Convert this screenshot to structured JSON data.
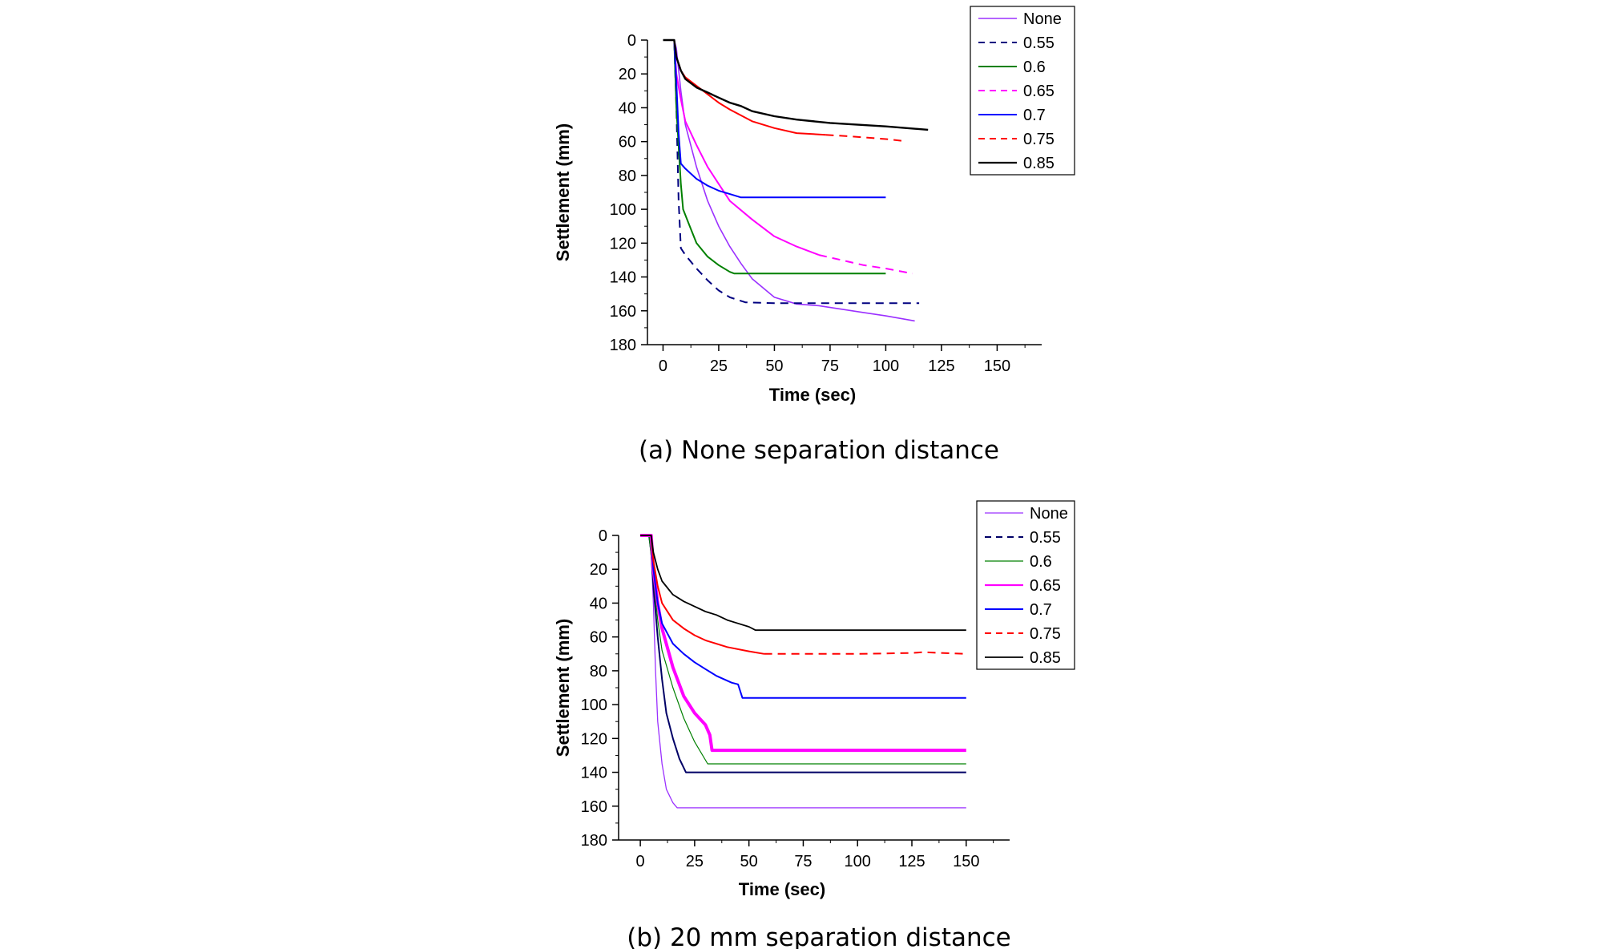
{
  "chart_data": [
    {
      "type": "line",
      "caption": "(a) None separation distance",
      "xlabel": "Time (sec)",
      "ylabel": "Settlement (mm)",
      "xlim": [
        -7,
        170
      ],
      "ylim": [
        0,
        180
      ],
      "y_inverted": true,
      "xticks": [
        "0",
        "25",
        "50",
        "75",
        "100",
        "125",
        "150"
      ],
      "yticks": [
        "0",
        "20",
        "40",
        "60",
        "80",
        "100",
        "120",
        "140",
        "160",
        "180"
      ],
      "legend": "top-right",
      "series": [
        {
          "name": "None",
          "color": "#9b30ff",
          "dash": "solid",
          "width": 1.6,
          "points": [
            [
              0,
              0
            ],
            [
              5,
              0
            ],
            [
              6,
              5
            ],
            [
              8,
              30
            ],
            [
              10,
              50
            ],
            [
              15,
              75
            ],
            [
              20,
              95
            ],
            [
              25,
              110
            ],
            [
              30,
              122
            ],
            [
              35,
              132
            ],
            [
              40,
              141
            ],
            [
              50,
              152
            ],
            [
              60,
              156
            ],
            [
              70,
              157
            ],
            [
              80,
              159
            ],
            [
              90,
              161
            ],
            [
              100,
              163
            ],
            [
              113,
              166
            ]
          ]
        },
        {
          "name": "0.55",
          "color": "#000080",
          "dash": "dashed",
          "width": 2,
          "points": [
            [
              0,
              0
            ],
            [
              5,
              0
            ],
            [
              6,
              40
            ],
            [
              7,
              95
            ],
            [
              8,
              123
            ],
            [
              10,
              127
            ],
            [
              15,
              135
            ],
            [
              20,
              142
            ],
            [
              25,
              148
            ],
            [
              30,
              152
            ],
            [
              37,
              155
            ],
            [
              50,
              155.5
            ],
            [
              75,
              155.5
            ],
            [
              100,
              155.5
            ],
            [
              115,
              155.5
            ]
          ]
        },
        {
          "name": "0.6",
          "color": "#008000",
          "dash": "solid",
          "width": 2,
          "points": [
            [
              0,
              0
            ],
            [
              5,
              0
            ],
            [
              6,
              40
            ],
            [
              8,
              85
            ],
            [
              9,
              100
            ],
            [
              12,
              110
            ],
            [
              15,
              120
            ],
            [
              20,
              128
            ],
            [
              25,
              133
            ],
            [
              30,
              137
            ],
            [
              32,
              138
            ],
            [
              50,
              138
            ],
            [
              75,
              138
            ],
            [
              100,
              138
            ]
          ]
        },
        {
          "name": "0.65",
          "color": "#ff00ff",
          "dash": "mixed",
          "width": 2,
          "dash_from_x": 70,
          "points": [
            [
              0,
              0
            ],
            [
              5,
              0
            ],
            [
              6,
              20
            ],
            [
              8,
              35
            ],
            [
              10,
              48
            ],
            [
              15,
              62
            ],
            [
              20,
              75
            ],
            [
              25,
              85
            ],
            [
              30,
              95
            ],
            [
              40,
              106
            ],
            [
              50,
              116
            ],
            [
              60,
              122
            ],
            [
              70,
              127
            ],
            [
              80,
              130
            ],
            [
              90,
              133
            ],
            [
              100,
              135
            ],
            [
              112,
              138
            ]
          ]
        },
        {
          "name": "0.7",
          "color": "#0000ff",
          "dash": "solid",
          "width": 2,
          "points": [
            [
              0,
              0
            ],
            [
              5,
              0
            ],
            [
              6,
              25
            ],
            [
              7,
              55
            ],
            [
              8,
              73
            ],
            [
              10,
              76
            ],
            [
              15,
              82
            ],
            [
              20,
              86
            ],
            [
              25,
              89
            ],
            [
              30,
              91
            ],
            [
              35,
              93
            ],
            [
              45,
              93
            ],
            [
              60,
              93
            ],
            [
              80,
              93
            ],
            [
              100,
              93
            ]
          ]
        },
        {
          "name": "0.75",
          "color": "#ff0000",
          "dash": "mixed",
          "width": 2,
          "dash_from_x": 73,
          "points": [
            [
              0,
              0
            ],
            [
              5,
              0
            ],
            [
              6,
              10
            ],
            [
              8,
              18
            ],
            [
              10,
              22
            ],
            [
              15,
              27
            ],
            [
              20,
              32
            ],
            [
              25,
              37
            ],
            [
              30,
              41
            ],
            [
              40,
              48
            ],
            [
              50,
              52
            ],
            [
              60,
              55
            ],
            [
              73,
              56
            ],
            [
              85,
              57
            ],
            [
              100,
              58.5
            ],
            [
              107,
              59.5
            ]
          ]
        },
        {
          "name": "0.85",
          "color": "#000000",
          "dash": "solid",
          "width": 2.4,
          "points": [
            [
              0,
              0
            ],
            [
              5,
              0
            ],
            [
              6,
              10
            ],
            [
              8,
              18
            ],
            [
              10,
              23
            ],
            [
              15,
              28
            ],
            [
              20,
              31
            ],
            [
              25,
              34
            ],
            [
              30,
              37
            ],
            [
              35,
              39
            ],
            [
              40,
              42
            ],
            [
              50,
              45
            ],
            [
              60,
              47
            ],
            [
              75,
              49
            ],
            [
              100,
              51
            ],
            [
              119,
              53
            ]
          ]
        }
      ]
    },
    {
      "type": "line",
      "caption": "(b) 20 mm separation distance",
      "xlabel": "Time (sec)",
      "ylabel": "Settlement (mm)",
      "xlim": [
        -10,
        170
      ],
      "ylim": [
        0,
        180
      ],
      "y_inverted": true,
      "xticks": [
        "0",
        "25",
        "50",
        "75",
        "100",
        "125",
        "150"
      ],
      "yticks": [
        "0",
        "20",
        "40",
        "60",
        "80",
        "100",
        "120",
        "140",
        "160",
        "180"
      ],
      "legend": "top-right",
      "series": [
        {
          "name": "None",
          "color": "#9b30ff",
          "dash": "solid",
          "width": 1.3,
          "points": [
            [
              0,
              0
            ],
            [
              4,
              0
            ],
            [
              5,
              10
            ],
            [
              6,
              40
            ],
            [
              7,
              80
            ],
            [
              8,
              110
            ],
            [
              10,
              135
            ],
            [
              12,
              150
            ],
            [
              15,
              158
            ],
            [
              17,
              161
            ],
            [
              20,
              161
            ],
            [
              50,
              161
            ],
            [
              100,
              161
            ],
            [
              150,
              161
            ]
          ]
        },
        {
          "name": "0.55",
          "color": "#000066",
          "dash": "mixed",
          "width": 2,
          "dash_from_x": 150,
          "points": [
            [
              0,
              0
            ],
            [
              4,
              0
            ],
            [
              5,
              10
            ],
            [
              6,
              30
            ],
            [
              8,
              60
            ],
            [
              10,
              85
            ],
            [
              12,
              105
            ],
            [
              15,
              120
            ],
            [
              18,
              132
            ],
            [
              21,
              140
            ],
            [
              30,
              140
            ],
            [
              50,
              140
            ],
            [
              100,
              140
            ],
            [
              150,
              140
            ]
          ]
        },
        {
          "name": "0.6",
          "color": "#008000",
          "dash": "solid",
          "width": 1.2,
          "points": [
            [
              0,
              0
            ],
            [
              4,
              0
            ],
            [
              6,
              25
            ],
            [
              8,
              50
            ],
            [
              10,
              68
            ],
            [
              15,
              90
            ],
            [
              20,
              108
            ],
            [
              25,
              122
            ],
            [
              31,
              135
            ],
            [
              50,
              135
            ],
            [
              100,
              135
            ],
            [
              150,
              135
            ]
          ]
        },
        {
          "name": "0.65",
          "color": "#ff00ff",
          "dash": "solid",
          "width": 4,
          "points": [
            [
              0,
              0
            ],
            [
              5,
              0
            ],
            [
              6,
              20
            ],
            [
              8,
              40
            ],
            [
              10,
              55
            ],
            [
              15,
              78
            ],
            [
              20,
              95
            ],
            [
              25,
              105
            ],
            [
              30,
              112
            ],
            [
              32,
              118
            ],
            [
              33,
              127
            ],
            [
              50,
              127
            ],
            [
              100,
              127
            ],
            [
              150,
              127
            ]
          ]
        },
        {
          "name": "0.7",
          "color": "#0000ff",
          "dash": "solid",
          "width": 2,
          "points": [
            [
              0,
              0
            ],
            [
              5,
              0
            ],
            [
              6,
              20
            ],
            [
              8,
              40
            ],
            [
              10,
              52
            ],
            [
              15,
              64
            ],
            [
              20,
              70
            ],
            [
              25,
              75
            ],
            [
              30,
              79
            ],
            [
              35,
              83
            ],
            [
              42,
              87
            ],
            [
              45,
              88
            ],
            [
              47,
              96
            ],
            [
              75,
              96
            ],
            [
              100,
              96
            ],
            [
              150,
              96
            ]
          ]
        },
        {
          "name": "0.75",
          "color": "#ff0000",
          "dash": "mixed",
          "width": 2,
          "dash_from_x": 57,
          "points": [
            [
              0,
              0
            ],
            [
              5,
              0
            ],
            [
              6,
              15
            ],
            [
              8,
              30
            ],
            [
              10,
              40
            ],
            [
              15,
              50
            ],
            [
              20,
              55
            ],
            [
              25,
              59
            ],
            [
              30,
              62
            ],
            [
              40,
              66
            ],
            [
              50,
              68.5
            ],
            [
              57,
              70
            ],
            [
              75,
              70
            ],
            [
              100,
              70
            ],
            [
              125,
              69.5
            ],
            [
              130,
              69
            ],
            [
              150,
              70
            ]
          ]
        },
        {
          "name": "0.85",
          "color": "#000000",
          "dash": "solid",
          "width": 1.8,
          "points": [
            [
              0,
              0
            ],
            [
              5,
              0
            ],
            [
              6,
              10
            ],
            [
              8,
              20
            ],
            [
              10,
              27
            ],
            [
              15,
              35
            ],
            [
              20,
              39
            ],
            [
              25,
              42
            ],
            [
              30,
              45
            ],
            [
              35,
              47
            ],
            [
              40,
              50
            ],
            [
              45,
              52
            ],
            [
              50,
              54
            ],
            [
              53,
              56
            ],
            [
              75,
              56
            ],
            [
              100,
              56
            ],
            [
              150,
              56
            ]
          ]
        }
      ]
    }
  ]
}
